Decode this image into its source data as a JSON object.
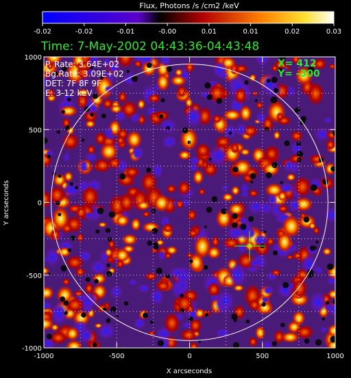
{
  "colorbar": {
    "title": "Flux, Photons /s /cm2 /keV",
    "ticks": [
      "-0.02",
      "-0.02",
      "-0.01",
      "-0.00",
      "0.01",
      "0.01",
      "0.02",
      "0.03"
    ]
  },
  "time_label": "Time:  7-May-2002 04:43:36-04:43:48",
  "info": {
    "p_rate": "P. Rate:  3.64E+02",
    "bg_rate": "Bg.Rate:  3.09E+02",
    "det": "DET: 7F 8F 9F",
    "energy": "E: 3-12 keV"
  },
  "cursor": {
    "x_label": "X=  412",
    "y_label": "Y=  -300",
    "x": 412,
    "y": -300
  },
  "axes": {
    "xlabel": "X arcseconds",
    "ylabel": "Y arcseconds",
    "xlim": [
      -1000,
      1000
    ],
    "ylim": [
      -1000,
      1000
    ],
    "xticks": [
      "-1000",
      "-500",
      "0",
      "500",
      "1000"
    ],
    "yticks": [
      "-1000",
      "-500",
      "0",
      "500",
      "1000"
    ]
  },
  "colors": {
    "background": "#000000",
    "text": "#ffffff",
    "accent_green": "#32e632",
    "cursor": "#40ff40",
    "limb": "#ffffff"
  },
  "image": {
    "colormap": "blue-purple-red-yellow-white"
  }
}
